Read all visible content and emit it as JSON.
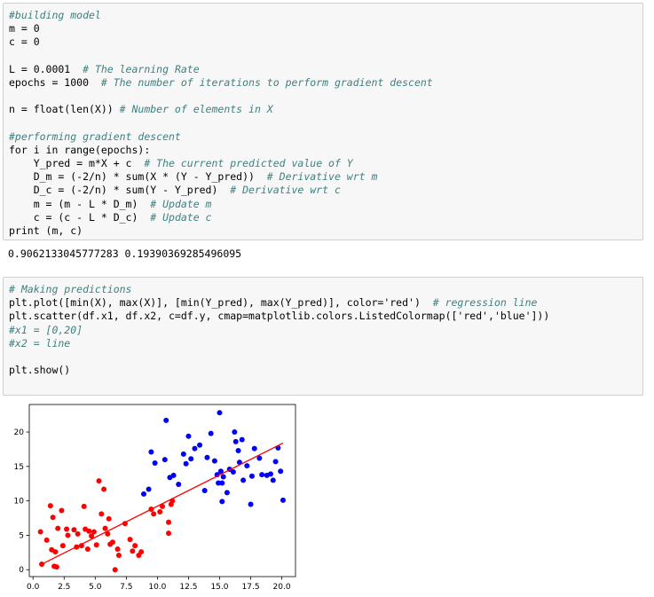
{
  "cells": [
    {
      "blocks": [
        [
          {
            "comment": "#building model"
          },
          {
            "code": "m = 0"
          },
          {
            "code": "c = 0"
          }
        ],
        [
          {
            "code": "L = 0.0001  ",
            "comment": "# The learning Rate"
          },
          {
            "code": "epochs = 1000  ",
            "comment": "# The number of iterations to perform gradient descent"
          }
        ],
        [
          {
            "code": "n = float(len(X)) ",
            "comment": "# Number of elements in X"
          }
        ],
        [
          {
            "comment": "#performing gradient descent"
          },
          {
            "code": "for i in range(epochs):"
          },
          {
            "code": "    Y_pred = m*X + c  ",
            "comment": "# The current predicted value of Y"
          },
          {
            "code": "    D_m = (-2/n) * sum(X * (Y - Y_pred))  ",
            "comment": "# Derivative wrt m"
          },
          {
            "code": "    D_c = (-2/n) * sum(Y - Y_pred)  ",
            "comment": "# Derivative wrt c"
          },
          {
            "code": "    m = (m - L * D_m)  ",
            "comment": "# Update m"
          },
          {
            "code": "    c = (c - L * D_c)  ",
            "comment": "# Update c"
          },
          {
            "code": "print (m, c)"
          }
        ]
      ]
    },
    {
      "blocks": [
        [
          {
            "comment": "# Making predictions"
          },
          {
            "code": "plt.plot([min(X), max(X)], [min(Y_pred), max(Y_pred)], color='red')  ",
            "comment": "# regression line"
          },
          {
            "code": "plt.scatter(df.x1, df.x2, c=df.y, cmap=matplotlib.colors.ListedColormap(['red','blue']))"
          },
          {
            "comment": "#x1 = [0,20]"
          },
          {
            "comment": "#x2 = line"
          }
        ],
        [
          {
            "code": "plt.show()"
          }
        ]
      ]
    }
  ],
  "output": "0.9062133045777283 0.19390369285496095",
  "chart_data": {
    "type": "scatter",
    "xlim": [
      -0.3,
      21.1
    ],
    "ylim": [
      -1.0,
      24.0
    ],
    "xticks": [
      {
        "value": 0,
        "label": "0.0"
      },
      {
        "value": 2.5,
        "label": "2.5"
      },
      {
        "value": 5,
        "label": "5.0"
      },
      {
        "value": 7.5,
        "label": "7.5"
      },
      {
        "value": 10,
        "label": "10.0"
      },
      {
        "value": 12.5,
        "label": "12.5"
      },
      {
        "value": 15,
        "label": "15.0"
      },
      {
        "value": 17.5,
        "label": "17.5"
      },
      {
        "value": 20,
        "label": "20.0"
      }
    ],
    "yticks": [
      0,
      5,
      10,
      15,
      20
    ],
    "series": [
      {
        "color": "red",
        "x": [
          0.6,
          0.7,
          1.1,
          1.4,
          1.5,
          1.6,
          1.7,
          1.8,
          1.9,
          2.0,
          2.3,
          2.4,
          2.7,
          2.8,
          3.3,
          3.5,
          3.6,
          3.9,
          4.1,
          4.2,
          4.4,
          4.5,
          4.7,
          4.9,
          5.1,
          5.3,
          5.5,
          5.7,
          5.8,
          6.0,
          6.1,
          6.2,
          6.4,
          6.6,
          6.8,
          6.9,
          7.4,
          7.8,
          8.0,
          8.2,
          8.5,
          8.7,
          9.5,
          9.7,
          10.2,
          10.9,
          10.9,
          11.1,
          11.2,
          10.4
        ],
        "values": [
          5.5,
          0.8,
          4.3,
          9.3,
          2.9,
          7.6,
          0.5,
          2.6,
          0.4,
          6.0,
          8.6,
          3.5,
          5.9,
          5.0,
          5.8,
          3.3,
          5.2,
          3.5,
          9.2,
          5.9,
          3.0,
          5.6,
          4.9,
          5.5,
          3.6,
          12.9,
          8.1,
          11.7,
          6.0,
          5.2,
          7.4,
          3.7,
          4.0,
          0.0,
          3.0,
          2.1,
          6.7,
          4.4,
          2.7,
          3.5,
          2.1,
          2.6,
          8.8,
          8.1,
          8.4,
          5.3,
          6.9,
          9.5,
          10.0,
          9.2
        ]
      },
      {
        "color": "blue",
        "x": [
          8.9,
          9.3,
          9.5,
          9.8,
          10.6,
          10.7,
          11.0,
          11.3,
          11.7,
          12.1,
          12.3,
          12.5,
          12.7,
          13.0,
          13.4,
          13.8,
          14.0,
          14.3,
          14.6,
          14.8,
          14.9,
          15.0,
          15.1,
          15.2,
          15.3,
          15.6,
          15.8,
          16.1,
          16.2,
          16.3,
          16.5,
          16.6,
          16.9,
          17.2,
          17.5,
          17.6,
          17.8,
          18.2,
          18.4,
          18.8,
          19.1,
          19.3,
          19.5,
          19.7,
          19.9,
          20.1,
          16.8,
          15.2
        ],
        "values": [
          11.0,
          11.7,
          17.1,
          15.5,
          16.0,
          21.7,
          13.4,
          13.7,
          12.4,
          16.8,
          15.4,
          19.4,
          16.1,
          17.6,
          18.1,
          11.5,
          16.3,
          19.8,
          15.8,
          13.8,
          12.6,
          22.8,
          14.3,
          9.9,
          13.5,
          11.2,
          14.6,
          14.2,
          20.0,
          18.6,
          17.3,
          15.6,
          13.0,
          15.1,
          9.5,
          13.6,
          17.6,
          16.2,
          13.8,
          13.7,
          13.9,
          13.0,
          15.7,
          17.7,
          14.3,
          10.1,
          18.9,
          12.6
        ]
      }
    ],
    "regression_line": {
      "color": "red",
      "x": [
        0.7,
        20.1
      ],
      "values": [
        0.8,
        18.4
      ]
    }
  }
}
